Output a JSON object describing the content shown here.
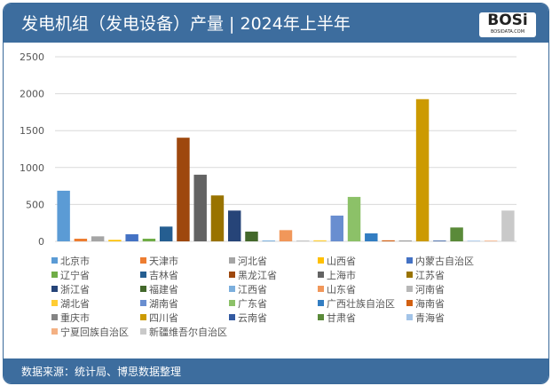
{
  "header": {
    "title": "发电机组（发电设备）产量 | 2024年上半年",
    "logo": "BOSi",
    "logo_sub": "BOSIDATA.COM"
  },
  "footer": {
    "source": "数据来源：统计局、博思数据整理"
  },
  "chart_data": {
    "type": "bar",
    "title": "发电机组（发电设备）产量 | 2024年上半年",
    "ylim": [
      0,
      2500
    ],
    "yticks": [
      "0",
      "500",
      "1000",
      "1500",
      "2000",
      "2500"
    ],
    "grid": true,
    "legend_position": "bottom",
    "categories": [
      "北京市",
      "天津市",
      "河北省",
      "山西省",
      "内蒙古自治区",
      "辽宁省",
      "吉林省",
      "黑龙江省",
      "上海市",
      "江苏省",
      "浙江省",
      "福建省",
      "江西省",
      "山东省",
      "河南省",
      "湖北省",
      "湖南省",
      "广东省",
      "广西壮族自治区",
      "海南省",
      "重庆市",
      "四川省",
      "云南省",
      "甘肃省",
      "青海省",
      "宁夏回族自治区",
      "新疆维吾尔自治区"
    ],
    "values": [
      686,
      36,
      68,
      20,
      96,
      36,
      200,
      1404,
      903,
      622,
      417,
      132,
      12,
      152,
      10,
      14,
      349,
      602,
      108,
      14,
      10,
      1926,
      10,
      188,
      10,
      10,
      417
    ],
    "colors": [
      "#5b9bd5",
      "#ed7d31",
      "#a5a5a5",
      "#ffc000",
      "#4472c4",
      "#70ad47",
      "#255e91",
      "#9e480e",
      "#636363",
      "#997300",
      "#264478",
      "#43682b",
      "#7cafdd",
      "#f1975a",
      "#b7b7b7",
      "#ffcd33",
      "#698ed0",
      "#8cc168",
      "#327dc2",
      "#d26012",
      "#848484",
      "#cc9a00",
      "#335aa1",
      "#5a8a39",
      "#a3c4e8",
      "#f4b183",
      "#c9c9c9"
    ]
  }
}
